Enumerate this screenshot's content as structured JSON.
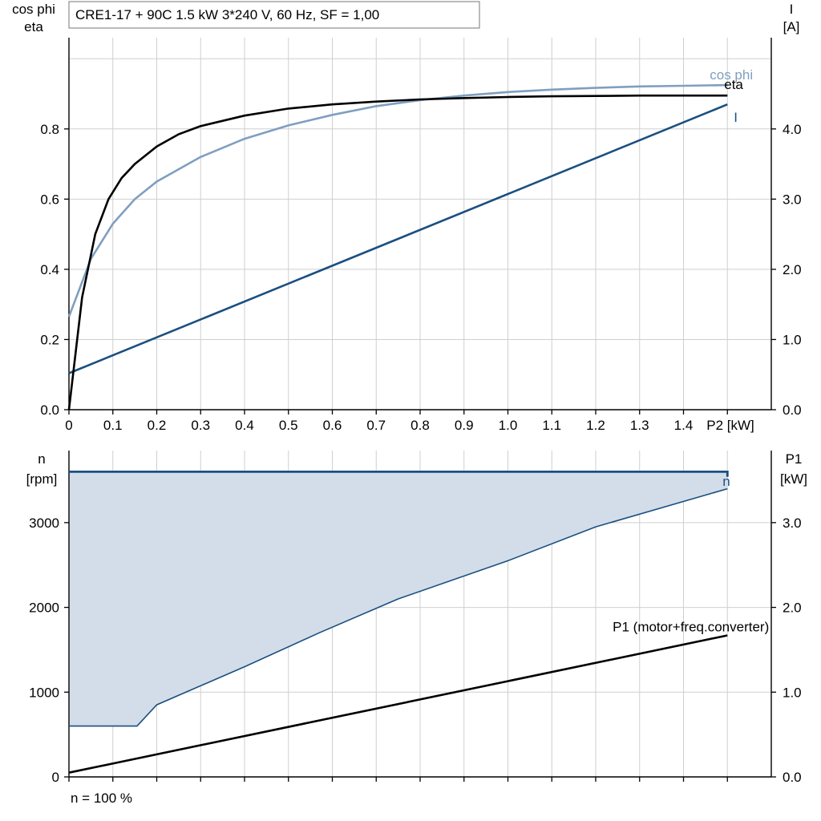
{
  "title": "CRE1-17 + 90C   1.5 kW   3*240 V, 60 Hz, SF = 1,00",
  "footer": "n = 100 %",
  "colors": {
    "eta": "#000000",
    "cosphi": "#7f9fbf",
    "current": "#1a4f80",
    "speed": "#1a4f80",
    "speed_fill": "#d2dde9",
    "p1": "#000000"
  },
  "chart_data": [
    {
      "type": "line",
      "xlabel": "P2 [kW]",
      "xlim": [
        0,
        1.6
      ],
      "x_ticks": [
        "0",
        "0.1",
        "0.2",
        "0.3",
        "0.4",
        "0.5",
        "0.6",
        "0.7",
        "0.8",
        "0.9",
        "1.0",
        "1.1",
        "1.2",
        "1.3",
        "1.4"
      ],
      "left_axis": {
        "label_line1": "cos phi",
        "label_line2": "eta",
        "ylim": [
          0,
          1.06
        ],
        "ticks": [
          "0.0",
          "0.2",
          "0.4",
          "0.6",
          "0.8"
        ]
      },
      "right_axis": {
        "label_line1": "I",
        "label_line2": "[A]",
        "ylim": [
          0,
          5.3
        ],
        "ticks": [
          "0.0",
          "1.0",
          "2.0",
          "3.0",
          "4.0"
        ]
      },
      "grid": true,
      "series": [
        {
          "name": "eta",
          "axis": "left",
          "x": [
            0,
            0.03,
            0.06,
            0.09,
            0.12,
            0.15,
            0.2,
            0.25,
            0.3,
            0.4,
            0.5,
            0.6,
            0.7,
            0.8,
            0.9,
            1.0,
            1.1,
            1.2,
            1.3,
            1.4,
            1.5
          ],
          "y": [
            0,
            0.32,
            0.5,
            0.6,
            0.66,
            0.7,
            0.75,
            0.785,
            0.808,
            0.838,
            0.858,
            0.87,
            0.878,
            0.884,
            0.888,
            0.891,
            0.893,
            0.894,
            0.895,
            0.895,
            0.895
          ]
        },
        {
          "name": "cos phi",
          "axis": "left",
          "x": [
            0,
            0.05,
            0.1,
            0.15,
            0.2,
            0.3,
            0.4,
            0.5,
            0.6,
            0.7,
            0.8,
            0.9,
            1.0,
            1.1,
            1.2,
            1.3,
            1.4,
            1.5
          ],
          "y": [
            0.265,
            0.43,
            0.53,
            0.6,
            0.65,
            0.72,
            0.772,
            0.81,
            0.84,
            0.865,
            0.882,
            0.895,
            0.905,
            0.912,
            0.917,
            0.921,
            0.923,
            0.925
          ]
        },
        {
          "name": "I",
          "axis": "right",
          "x": [
            0,
            1.5
          ],
          "y": [
            0.52,
            4.35
          ]
        }
      ]
    },
    {
      "type": "area",
      "xlim": [
        0,
        1.6
      ],
      "left_axis": {
        "label_line1": "n",
        "label_line2": "[rpm]",
        "ylim": [
          0,
          3850
        ],
        "ticks": [
          "0",
          "1000",
          "2000",
          "3000"
        ]
      },
      "right_axis": {
        "label_line1": "P1",
        "label_line2": "[kW]",
        "ylim": [
          0,
          3.85
        ],
        "ticks": [
          "0.0",
          "1.0",
          "2.0",
          "3.0"
        ]
      },
      "grid": true,
      "series": [
        {
          "name": "n",
          "axis": "left",
          "x": [
            0,
            1.5,
            1.5
          ],
          "y": [
            3600,
            3600,
            3540
          ]
        },
        {
          "name": "n (lower limit)",
          "axis": "left",
          "x": [
            0,
            0.155,
            0.2,
            0.4,
            0.57,
            0.75,
            1.0,
            1.2,
            1.5
          ],
          "y": [
            600,
            600,
            850,
            1300,
            1700,
            2100,
            2550,
            2950,
            3400
          ]
        },
        {
          "name": "P1 (motor+freq.converter)",
          "axis": "right",
          "x": [
            0,
            1.5
          ],
          "y": [
            0.05,
            1.67
          ]
        }
      ]
    }
  ]
}
